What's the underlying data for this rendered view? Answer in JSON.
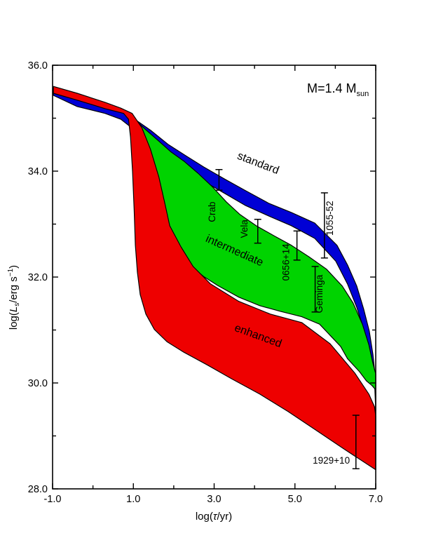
{
  "figure": {
    "background": "#ffffff",
    "frame_color": "#000000"
  },
  "chart_data": {
    "type": "area",
    "title": "",
    "subtitle": "",
    "xlabel": "log(τ/yr)",
    "ylabel": "log(Ls/erg s−1)",
    "xlabel_parts": {
      "p1": "log(",
      "p2": "τ",
      "p3": "/yr)"
    },
    "ylabel_parts": {
      "p1": "log(",
      "p2": "L",
      "p3": "s",
      "p4": "/erg s",
      "p5": "−1",
      "p6": ")"
    },
    "annotation": {
      "m1": "M=1.4 M",
      "m2": "sun"
    },
    "xlim": [
      -1,
      7
    ],
    "ylim": [
      28,
      36
    ],
    "grid": false,
    "legend_position": "none",
    "x_tick_labels": [
      "-1.0",
      "1.0",
      "3.0",
      "5.0",
      "7.0"
    ],
    "x_tick_values": [
      -1,
      1,
      3,
      5,
      7
    ],
    "x_minor_tick_values": [
      0,
      2,
      4,
      6
    ],
    "y_tick_labels": [
      "36.0",
      "34.0",
      "32.0",
      "30.0",
      "28.0"
    ],
    "y_tick_values": [
      36,
      34,
      32,
      30,
      28
    ],
    "y_minor_tick_values": [
      35,
      33,
      31,
      29
    ],
    "bands": [
      {
        "name": "standard",
        "color": "#0000d5",
        "upper": [
          [
            -0.98,
            35.56
          ],
          [
            -0.39,
            35.34
          ],
          [
            0.3,
            35.2
          ],
          [
            0.69,
            35.14
          ],
          [
            1.09,
            34.95
          ],
          [
            1.43,
            34.77
          ],
          [
            1.87,
            34.5
          ],
          [
            2.3,
            34.29
          ],
          [
            2.74,
            34.08
          ],
          [
            3.26,
            33.85
          ],
          [
            3.78,
            33.63
          ],
          [
            4.36,
            33.39
          ],
          [
            4.91,
            33.22
          ],
          [
            5.49,
            33.02
          ],
          [
            6.04,
            32.6
          ],
          [
            6.3,
            32.23
          ],
          [
            6.53,
            31.83
          ],
          [
            6.7,
            31.4
          ],
          [
            6.84,
            30.98
          ],
          [
            6.93,
            30.54
          ],
          [
            6.98,
            30.19
          ],
          [
            7.0,
            29.84
          ]
        ],
        "lower": [
          [
            -0.98,
            35.43
          ],
          [
            -0.39,
            35.22
          ],
          [
            0.3,
            35.09
          ],
          [
            0.69,
            34.98
          ],
          [
            1.09,
            34.74
          ],
          [
            1.43,
            34.52
          ],
          [
            1.87,
            34.24
          ],
          [
            2.3,
            34.03
          ],
          [
            2.74,
            33.81
          ],
          [
            3.26,
            33.58
          ],
          [
            3.78,
            33.35
          ],
          [
            4.36,
            33.15
          ],
          [
            4.91,
            32.97
          ],
          [
            5.49,
            32.73
          ],
          [
            6.01,
            32.3
          ],
          [
            6.3,
            31.87
          ],
          [
            6.53,
            31.43
          ],
          [
            6.7,
            31.03
          ],
          [
            6.84,
            30.61
          ],
          [
            6.93,
            30.21
          ],
          [
            6.98,
            29.87
          ],
          [
            7.0,
            29.48
          ]
        ]
      },
      {
        "name": "intermediate",
        "color": "#00d300",
        "upper": [
          [
            0.79,
            35.13
          ],
          [
            1.03,
            34.98
          ],
          [
            1.31,
            34.78
          ],
          [
            1.61,
            34.58
          ],
          [
            1.92,
            34.37
          ],
          [
            2.25,
            34.19
          ],
          [
            2.6,
            33.96
          ],
          [
            2.95,
            33.71
          ],
          [
            3.3,
            33.42
          ],
          [
            3.64,
            33.18
          ],
          [
            4.04,
            32.97
          ],
          [
            4.48,
            32.78
          ],
          [
            4.91,
            32.6
          ],
          [
            5.35,
            32.38
          ],
          [
            5.78,
            32.15
          ],
          [
            6.17,
            31.83
          ],
          [
            6.44,
            31.51
          ],
          [
            6.67,
            31.11
          ],
          [
            6.83,
            30.72
          ],
          [
            6.93,
            30.37
          ],
          [
            7.0,
            30.17
          ]
        ],
        "lower": [
          [
            0.97,
            35.05
          ],
          [
            1.21,
            34.78
          ],
          [
            1.42,
            34.4
          ],
          [
            1.61,
            33.89
          ],
          [
            1.77,
            33.39
          ],
          [
            1.89,
            32.97
          ],
          [
            2.15,
            32.57
          ],
          [
            2.44,
            32.2
          ],
          [
            2.74,
            32.01
          ],
          [
            3.09,
            31.84
          ],
          [
            3.61,
            31.62
          ],
          [
            4.13,
            31.46
          ],
          [
            4.65,
            31.35
          ],
          [
            5.17,
            31.25
          ],
          [
            5.61,
            31.11
          ],
          [
            5.87,
            30.9
          ],
          [
            6.13,
            30.69
          ],
          [
            6.3,
            30.46
          ],
          [
            6.6,
            30.21
          ],
          [
            6.77,
            30.04
          ],
          [
            6.91,
            29.95
          ],
          [
            7.0,
            29.87
          ]
        ]
      },
      {
        "name": "enhanced",
        "color": "#ee0000",
        "upper": [
          [
            -0.98,
            35.6
          ],
          [
            -0.39,
            35.47
          ],
          [
            0.3,
            35.3
          ],
          [
            0.69,
            35.19
          ],
          [
            0.97,
            35.09
          ],
          [
            1.21,
            34.82
          ],
          [
            1.42,
            34.42
          ],
          [
            1.63,
            33.89
          ],
          [
            1.78,
            33.39
          ],
          [
            1.9,
            32.97
          ],
          [
            2.18,
            32.57
          ],
          [
            2.48,
            32.2
          ],
          [
            2.91,
            31.87
          ],
          [
            3.61,
            31.54
          ],
          [
            4.39,
            31.3
          ],
          [
            5.17,
            31.14
          ],
          [
            5.87,
            30.74
          ],
          [
            6.48,
            30.19
          ],
          [
            6.83,
            29.79
          ],
          [
            6.97,
            29.55
          ],
          [
            7.0,
            29.38
          ]
        ],
        "lower": [
          [
            -0.98,
            35.47
          ],
          [
            -0.39,
            35.34
          ],
          [
            0.3,
            35.18
          ],
          [
            0.76,
            35.09
          ],
          [
            0.88,
            34.98
          ],
          [
            0.93,
            34.64
          ],
          [
            0.98,
            33.99
          ],
          [
            1.02,
            33.26
          ],
          [
            1.05,
            32.6
          ],
          [
            1.1,
            32.09
          ],
          [
            1.17,
            31.67
          ],
          [
            1.31,
            31.3
          ],
          [
            1.52,
            31.01
          ],
          [
            1.83,
            30.78
          ],
          [
            2.25,
            30.58
          ],
          [
            2.83,
            30.34
          ],
          [
            3.43,
            30.08
          ],
          [
            4.13,
            29.79
          ],
          [
            4.83,
            29.46
          ],
          [
            5.52,
            29.11
          ],
          [
            6.22,
            28.75
          ],
          [
            7.0,
            28.36
          ]
        ]
      }
    ],
    "band_labels": [
      {
        "text": "standard",
        "x": 4.06,
        "y": 34.09,
        "rotation": 21,
        "font_size": 16
      },
      {
        "text": "intermediate",
        "x": 3.47,
        "y": 32.44,
        "rotation": 24,
        "font_size": 16
      },
      {
        "text": "enhanced",
        "x": 4.06,
        "y": 30.83,
        "rotation": 20,
        "font_size": 16
      }
    ],
    "pulsars": [
      {
        "name": "Crab",
        "x": 3.12,
        "y_top": 34.03,
        "y_bottom": 33.64,
        "label_x": 3.03,
        "label_y": 33.23,
        "label_rotation": -90
      },
      {
        "name": "Vela",
        "x": 4.08,
        "y_top": 33.09,
        "y_bottom": 32.64,
        "label_x": 3.82,
        "label_y": 32.91,
        "label_rotation": -90
      },
      {
        "name": "0656+14",
        "x": 5.05,
        "y_top": 32.87,
        "y_bottom": 32.32,
        "label_x": 4.86,
        "label_y": 32.28,
        "label_rotation": -90
      },
      {
        "name": "Geminga",
        "x": 5.5,
        "y_top": 32.2,
        "y_bottom": 31.34,
        "label_x": 5.68,
        "label_y": 31.68,
        "label_rotation": -90
      },
      {
        "name": "1055-52",
        "x": 5.73,
        "y_top": 33.59,
        "y_bottom": 32.36,
        "label_x": 5.94,
        "label_y": 33.11,
        "label_rotation": -90
      },
      {
        "name": "1929+10",
        "x": 6.51,
        "y_top": 29.39,
        "y_bottom": 28.38,
        "label_x": 5.9,
        "label_y": 28.48,
        "label_rotation": 0
      }
    ]
  }
}
